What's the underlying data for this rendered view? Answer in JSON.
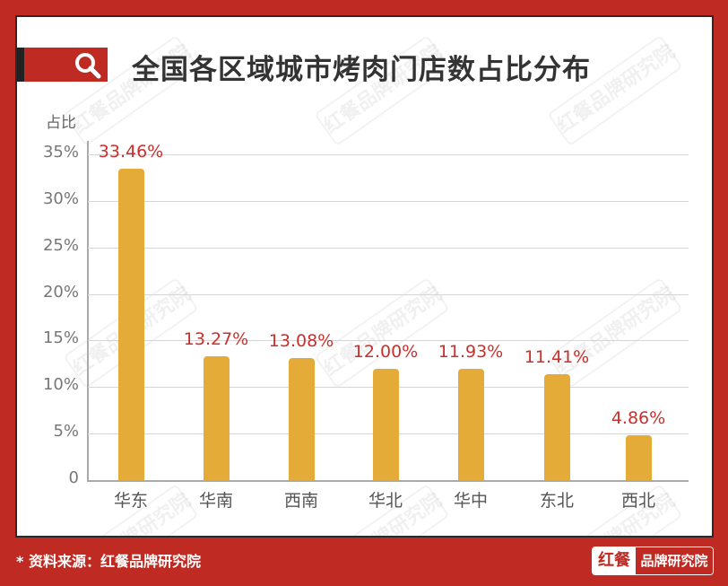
{
  "title": "全国各区域城市烤肉门店数占比分布",
  "footer": {
    "source": "* 资料来源：红餐品牌研究院",
    "logo_left": "红餐",
    "logo_right": "品牌研究院"
  },
  "watermark": "红餐品牌研究院",
  "colors": {
    "frame": "#bf2a22",
    "bar": "#e4ab38",
    "value_label": "#c9302c",
    "title": "#333333"
  },
  "chart_data": {
    "type": "bar",
    "title": "全国各区域城市烤肉门店数占比分布",
    "xlabel": "",
    "ylabel": "占比",
    "categories": [
      "华东",
      "华南",
      "西南",
      "华北",
      "华中",
      "东北",
      "西北"
    ],
    "values": [
      33.46,
      13.27,
      13.08,
      12.0,
      11.93,
      11.41,
      4.86
    ],
    "value_labels": [
      "33.46%",
      "13.27%",
      "13.08%",
      "12.00%",
      "11.93%",
      "11.41%",
      "4.86%"
    ],
    "ylim": [
      0,
      35
    ],
    "yticks": [
      "0",
      "5%",
      "10%",
      "15%",
      "20%",
      "25%",
      "30%",
      "35%"
    ],
    "grid": true,
    "legend": null
  }
}
